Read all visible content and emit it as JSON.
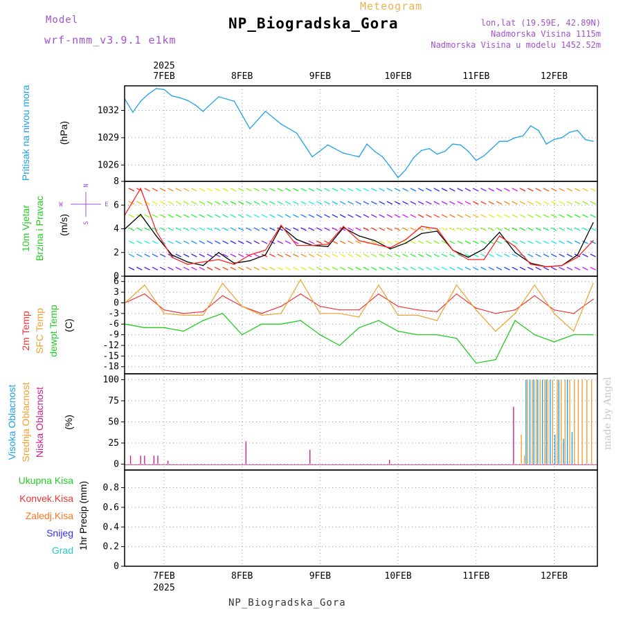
{
  "header": {
    "model_label": "Model",
    "model_value": "wrf-nmm_v3.9.1 e1km",
    "meteogram_label": "Meteogram",
    "station": "NP_Biogradska_Gora",
    "lonlat": "lon,lat (19.59E, 42.89N)",
    "elevation": "Nadmorska Visina 1115m",
    "model_elevation": "Nadmorska Visina u modelu 1452.52m"
  },
  "footer": {
    "station": "NP_Biogradska_Gora",
    "signature": "made by Angel"
  },
  "colors": {
    "pressure": "#1ea0e6",
    "wind_speed": "#000000",
    "wind_gust": "#ff2020",
    "temp_2m": "#ee3333",
    "temp_sfc": "#f0a030",
    "dewpoint": "#22cc22",
    "cloud_high": "#1ea0e6",
    "cloud_mid": "#f0a030",
    "cloud_low": "#cc2288",
    "precip_total": "#22cc22",
    "precip_conv": "#ee3333",
    "precip_frozen": "#ff7722",
    "snow": "#3030ff",
    "graupel": "#22cccc"
  },
  "chart_data": [
    {
      "type": "line",
      "panel": "pressure",
      "ylabel_lines": [
        "Pritisak na nivou mora",
        "(hPa)"
      ],
      "y_ticks": [
        1026,
        1029,
        1032
      ],
      "ylim": [
        1024.2,
        1034.7
      ],
      "x_tick_labels": [
        "7FEB",
        "8FEB",
        "9FEB",
        "10FEB",
        "11FEB",
        "12FEB"
      ],
      "x_year_label": "2025",
      "grid": true,
      "series": [
        {
          "name": "Pritisak na nivou mora",
          "x": [
            0,
            0.1,
            0.2,
            0.3,
            0.4,
            0.5,
            0.6,
            0.7,
            0.8,
            0.9,
            1.0,
            1.2,
            1.4,
            1.6,
            1.8,
            2.0,
            2.2,
            2.4,
            2.6,
            2.8,
            3.0,
            3.1,
            3.2,
            3.3,
            3.4,
            3.5,
            3.6,
            3.7,
            3.8,
            3.9,
            4.0,
            4.1,
            4.2,
            4.3,
            4.4,
            4.5,
            4.6,
            4.7,
            4.8,
            4.9,
            5.0,
            5.1,
            5.2,
            5.3,
            5.4,
            5.5,
            5.6,
            5.7,
            5.8,
            5.9,
            6.0
          ],
          "values": [
            1033.2,
            1031.8,
            1033.0,
            1033.8,
            1034.4,
            1034.3,
            1033.6,
            1033.4,
            1033.1,
            1032.6,
            1031.9,
            1033.5,
            1033.0,
            1030.0,
            1031.9,
            1030.5,
            1029.5,
            1026.9,
            1028.2,
            1027.3,
            1026.9,
            1028.3,
            1027.5,
            1026.9,
            1025.8,
            1024.6,
            1025.5,
            1026.8,
            1027.6,
            1027.8,
            1027.2,
            1027.5,
            1028.3,
            1028.2,
            1027.5,
            1026.5,
            1027.0,
            1027.8,
            1028.6,
            1028.6,
            1029.0,
            1029.2,
            1030.3,
            1029.8,
            1028.3,
            1028.8,
            1029.0,
            1029.6,
            1029.8,
            1028.8,
            1028.6
          ]
        }
      ]
    },
    {
      "type": "line",
      "panel": "wind",
      "ylabel_lines": [
        "10m Vjetar",
        "Brzina i Pravac",
        "(m/s)"
      ],
      "compass_labels": [
        "N",
        "E",
        "S",
        "W"
      ],
      "y_ticks": [
        0,
        2,
        4,
        6,
        8
      ],
      "ylim": [
        0,
        8
      ],
      "grid": true,
      "series": [
        {
          "name": "10m wind speed",
          "x": [
            0,
            0.2,
            0.4,
            0.6,
            0.8,
            1.0,
            1.2,
            1.4,
            1.6,
            1.8,
            2.0,
            2.2,
            2.4,
            2.6,
            2.8,
            3.0,
            3.2,
            3.4,
            3.6,
            3.8,
            4.0,
            4.2,
            4.4,
            4.6,
            4.8,
            5.0,
            5.2,
            5.4,
            5.6,
            5.8,
            6.0
          ],
          "values": [
            4.0,
            5.2,
            3.4,
            1.8,
            1.2,
            0.9,
            2.0,
            1.1,
            1.3,
            1.8,
            4.2,
            3.1,
            2.6,
            2.5,
            4.1,
            3.4,
            3.0,
            2.3,
            2.8,
            3.6,
            3.8,
            2.2,
            1.6,
            2.3,
            3.7,
            2.0,
            1.1,
            0.8,
            0.9,
            1.8,
            4.5
          ]
        },
        {
          "name": "10m wind gust",
          "x": [
            0,
            0.2,
            0.4,
            0.6,
            0.8,
            1.0,
            1.2,
            1.4,
            1.6,
            1.8,
            2.0,
            2.2,
            2.4,
            2.6,
            2.8,
            3.0,
            3.2,
            3.4,
            3.6,
            3.8,
            4.0,
            4.2,
            4.4,
            4.6,
            4.8,
            5.0,
            5.2,
            5.4,
            5.6,
            5.8,
            6.0
          ],
          "values": [
            5.2,
            7.4,
            3.8,
            1.6,
            1.0,
            1.2,
            1.4,
            1.0,
            1.8,
            2.2,
            4.3,
            2.6,
            2.6,
            2.7,
            4.2,
            3.0,
            2.7,
            2.4,
            3.1,
            4.2,
            4.0,
            2.2,
            1.4,
            1.4,
            3.4,
            2.5,
            1.0,
            0.8,
            0.9,
            1.6,
            3.0
          ]
        }
      ]
    },
    {
      "type": "line",
      "panel": "temperature",
      "ylabel_lines": [
        "2m Temp",
        "SFC Temp",
        "dewpt Temp",
        "(C)"
      ],
      "y_ticks": [
        6,
        3,
        0,
        -3,
        -6,
        -9,
        -12,
        -15,
        -18
      ],
      "ylim": [
        -20,
        7.5
      ],
      "grid": true,
      "series": [
        {
          "name": "2m Temp",
          "x": [
            0,
            0.25,
            0.5,
            0.75,
            1.0,
            1.25,
            1.5,
            1.75,
            2.0,
            2.25,
            2.5,
            2.75,
            3.0,
            3.25,
            3.5,
            3.75,
            4.0,
            4.25,
            4.5,
            4.75,
            5.0,
            5.25,
            5.5,
            5.75,
            6.0
          ],
          "values": [
            0,
            2.5,
            -2,
            -3,
            -2.5,
            2,
            -1,
            -3,
            -1,
            2.5,
            -1,
            -2,
            -2,
            2.5,
            -1,
            -2,
            -2.5,
            2.5,
            -1.5,
            -3,
            -2,
            2,
            -2,
            -3,
            1
          ]
        },
        {
          "name": "SFC Temp",
          "x": [
            0,
            0.25,
            0.5,
            0.75,
            1.0,
            1.25,
            1.5,
            1.75,
            2.0,
            2.25,
            2.5,
            2.75,
            3.0,
            3.25,
            3.5,
            3.75,
            4.0,
            4.25,
            4.5,
            4.75,
            5.0,
            5.25,
            5.5,
            5.75,
            6.0
          ],
          "values": [
            0,
            5,
            -3,
            -3.5,
            -3.5,
            5.5,
            -1,
            -3.5,
            -3,
            6.5,
            -3,
            -3,
            -4,
            5,
            -3.5,
            -3.5,
            -5,
            5,
            -2,
            -8,
            -3,
            5,
            -3,
            -8,
            5.5
          ]
        },
        {
          "name": "dewpt Temp",
          "x": [
            0,
            0.25,
            0.5,
            0.75,
            1.0,
            1.25,
            1.5,
            1.75,
            2.0,
            2.25,
            2.5,
            2.75,
            3.0,
            3.25,
            3.5,
            3.75,
            4.0,
            4.25,
            4.5,
            4.75,
            5.0,
            5.25,
            5.5,
            5.75,
            6.0
          ],
          "values": [
            -6,
            -7,
            -7,
            -8,
            -5,
            -3,
            -9,
            -6,
            -6,
            -5,
            -9,
            -12,
            -7,
            -5,
            -8,
            -9,
            -9,
            -10,
            -17,
            -16,
            -5,
            -9,
            -11,
            -9,
            -9
          ]
        }
      ]
    },
    {
      "type": "bar",
      "panel": "cloud",
      "ylabel_lines": [
        "Visoka Oblacnost",
        "Srednja Oblacnost",
        "Niska Oblacnost",
        "(%)"
      ],
      "y_ticks": [
        0,
        25,
        50,
        75,
        100
      ],
      "ylim": [
        -7,
        107
      ],
      "grid": true,
      "series": [
        {
          "name": "Niska Oblacnost",
          "x": [
            0.07,
            0.2,
            0.25,
            0.37,
            0.42,
            0.55,
            1.55,
            2.37,
            3.39,
            4.98
          ],
          "values": [
            10,
            10,
            10,
            10,
            10,
            4,
            27,
            17,
            5,
            68
          ]
        },
        {
          "name": "Srednja Oblacnost",
          "x": [
            5.08,
            5.12,
            5.16,
            5.22,
            5.27,
            5.32,
            5.38,
            5.42,
            5.48,
            5.54,
            5.59,
            5.64,
            5.7,
            5.76,
            5.81,
            5.86,
            5.92,
            5.98
          ],
          "values": [
            35,
            10,
            100,
            100,
            100,
            100,
            100,
            100,
            100,
            100,
            100,
            100,
            100,
            100,
            100,
            100,
            100,
            100
          ]
        },
        {
          "name": "Visoka Oblacnost",
          "x": [
            5.14,
            5.19,
            5.24,
            5.29,
            5.35,
            5.4,
            5.45,
            5.51,
            5.56,
            5.62,
            5.67,
            5.73
          ],
          "values": [
            100,
            100,
            100,
            100,
            100,
            100,
            100,
            35,
            100,
            30,
            100,
            38
          ]
        }
      ]
    },
    {
      "type": "bar",
      "panel": "precipitation",
      "ylabel_lines": [
        "1hr Precip (mm)"
      ],
      "legend": [
        "Ukupna Kisa",
        "Konvek.Kisa",
        "Zaledj.Kisa",
        "Snijeg",
        "Grad"
      ],
      "y_ticks": [
        0,
        0.2,
        0.4,
        0.6,
        0.8
      ],
      "ylim": [
        0,
        0.98
      ],
      "grid": true,
      "series": []
    }
  ]
}
